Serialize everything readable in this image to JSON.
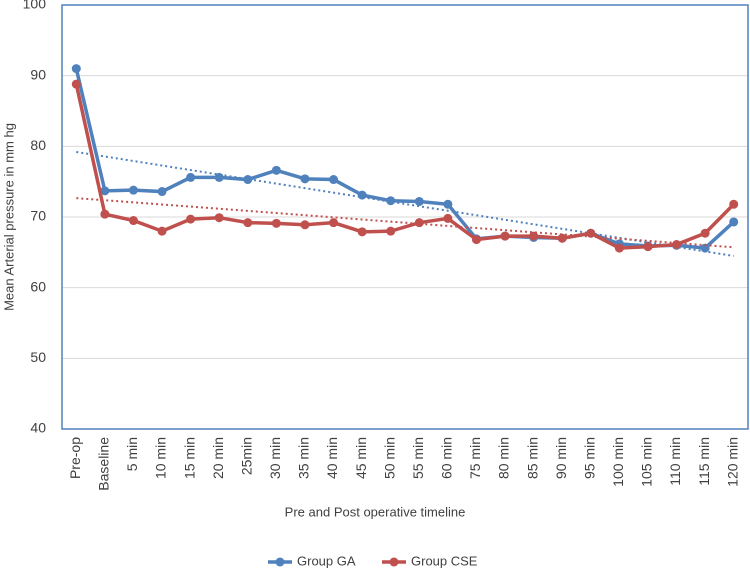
{
  "chart_data": {
    "type": "line",
    "x_label": "Pre and Post operative timeline",
    "y_label": "Mean Arterial pressure in mm hg",
    "categories": [
      "Pre-op",
      "Baseline",
      "5 min",
      "10 min",
      "15 min",
      "20 min",
      "25min",
      "30 min",
      "35 min",
      "40 min",
      "45 min",
      "50 min",
      "55 min",
      "60 min",
      "75 min",
      "80 min",
      "85 min",
      "90 min",
      "95 min",
      "100 min",
      "105 min",
      "110 min",
      "115 min",
      "120 min"
    ],
    "series": [
      {
        "name": "Group GA",
        "color": "#4f81bd",
        "values": [
          91.0,
          73.7,
          73.8,
          73.6,
          75.6,
          75.6,
          75.3,
          76.6,
          75.4,
          75.3,
          73.1,
          72.3,
          72.2,
          71.8,
          66.9,
          67.3,
          67.1,
          67.0,
          67.7,
          66.2,
          65.9,
          66.0,
          65.6,
          69.3
        ]
      },
      {
        "name": "Group CSE",
        "color": "#c0504d",
        "values": [
          88.8,
          70.4,
          69.5,
          68.0,
          69.7,
          69.9,
          69.2,
          69.1,
          68.9,
          69.2,
          67.9,
          68.0,
          69.2,
          69.8,
          66.8,
          67.3,
          67.3,
          67.0,
          67.7,
          65.6,
          65.8,
          66.1,
          67.7,
          71.8
        ]
      }
    ],
    "ylim": [
      40,
      100
    ],
    "yticks": [
      40,
      50,
      60,
      70,
      80,
      90,
      100
    ],
    "grid": true,
    "trendline": true,
    "legend": "bottom"
  }
}
